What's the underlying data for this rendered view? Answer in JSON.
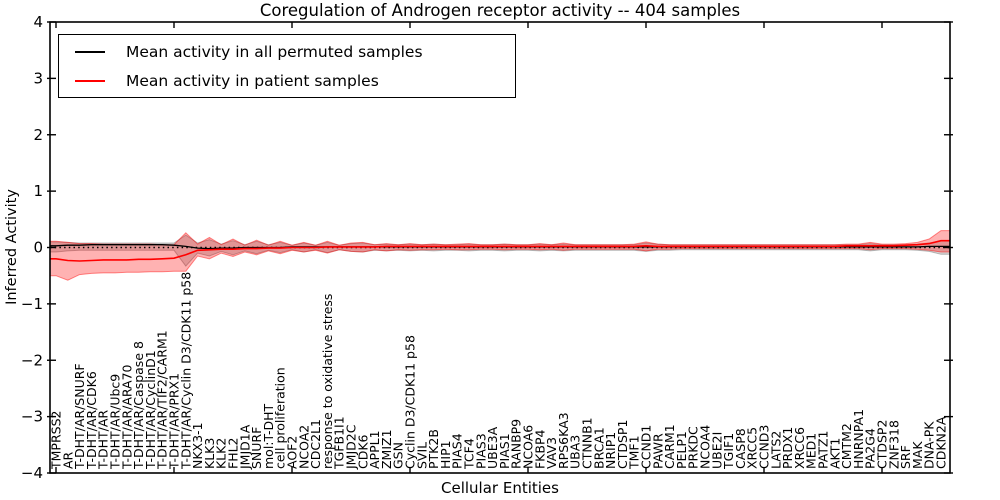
{
  "chart_data": {
    "type": "line",
    "title": "Coregulation of Androgen receptor activity -- 404 samples",
    "xlabel": "Cellular Entities",
    "ylabel": "Inferred Activity",
    "ylim": [
      -4,
      4
    ],
    "ytick_values": [
      4,
      3,
      2,
      1,
      0,
      -1,
      -2,
      -3,
      -4
    ],
    "ytick_labels": [
      "4",
      "3",
      "2",
      "1",
      "0",
      "−1",
      "−2",
      "−3",
      "−4"
    ],
    "grid": false,
    "legend_position": "upper left",
    "zero_line": "dotted black at y=0",
    "x_tick_every": 10,
    "categories": [
      "TMPRSS2",
      "AR",
      "T-DHT/AR/SNURF",
      "T-DHT/AR/CDK6",
      "T-DHT/AR",
      "T-DHT/AR/Ubc9",
      "T-DHT/AR/ARA70",
      "T-DHT/AR/Caspase 8",
      "T-DHT/AR/CyclinD1",
      "T-DHT/AR/TIF2/CARM1",
      "T-DHT/AR/PRX1",
      "T-DHT/AR/Cyclin D3/CDK11 p58",
      "NKX3-1",
      "KLK3",
      "KLK2",
      "FHL2",
      "JMJD1A",
      "SNURF",
      "mol:T-DHT",
      "cell proliferation",
      "AOF2",
      "NCOA2",
      "CDC2L1",
      "response to oxidative stress",
      "TGFB1I1",
      "JMJD2C",
      "CDK6",
      "APPL1",
      "ZMIZ1",
      "GSN",
      "Cyclin D3/CDK11 p58",
      "SVIL",
      "PTK2B",
      "HIP1",
      "PIAS4",
      "TCF4",
      "PIAS3",
      "UBE3A",
      "PIAS1",
      "RANBP9",
      "NCOA6",
      "FKBP4",
      "VAV3",
      "RPS6KA3",
      "UBA3",
      "CTNNB1",
      "BRCA1",
      "NRIP1",
      "CTDSP1",
      "TMF1",
      "CCND1",
      "PAWR",
      "CARM1",
      "PELP1",
      "PRKDC",
      "NCOA4",
      "UBE2I",
      "TGIF1",
      "CASP8",
      "XRCC5",
      "CCND3",
      "LATS2",
      "PRDX1",
      "XRCC6",
      "MED1",
      "PATZ1",
      "AKT1",
      "CMTM2",
      "HNRNPA1",
      "PA2G4",
      "CTDSP2",
      "ZNF318",
      "SRF",
      "MAK",
      "DNA-PK",
      "CDKN2A"
    ],
    "series": [
      {
        "name": "Mean activity in all permuted samples",
        "color": "#000000",
        "band_color": "rgba(0,0,0,0.16)",
        "band_edge_color": "rgba(0,0,0,0.25)",
        "values": [
          0.03,
          0.04,
          0.04,
          0.05,
          0.05,
          0.05,
          0.05,
          0.05,
          0.05,
          0.05,
          0.04,
          0.02,
          -0.01,
          -0.02,
          -0.01,
          -0.01,
          0,
          0,
          0,
          0,
          0.01,
          0.01,
          0.01,
          0.01,
          0.01,
          0.01,
          0.01,
          0.01,
          0.01,
          0.01,
          0.01,
          0.01,
          0.01,
          0.01,
          0.01,
          0.01,
          0.01,
          0.01,
          0.01,
          0.01,
          0.01,
          0.01,
          0.01,
          0.01,
          0.01,
          0.01,
          0.01,
          0.01,
          0.01,
          0.01,
          0.01,
          0.01,
          0.01,
          0.01,
          0.01,
          0.01,
          0.01,
          0.01,
          0.01,
          0.01,
          0.01,
          0.01,
          0.01,
          0.01,
          0.01,
          0.01,
          0.01,
          0.01,
          0.01,
          0.01,
          0.01,
          0.01,
          0.01,
          0.01,
          0.02,
          0.02
        ],
        "band_upper": [
          0.1,
          0.09,
          0.08,
          0.08,
          0.08,
          0.08,
          0.08,
          0.08,
          0.08,
          0.08,
          0.08,
          0.22,
          0.08,
          0.14,
          0.06,
          0.12,
          0.05,
          0.11,
          0.05,
          0.09,
          0.04,
          0.08,
          0.04,
          0.09,
          0.04,
          0.07,
          0.08,
          0.05,
          0.06,
          0.05,
          0.06,
          0.05,
          0.06,
          0.05,
          0.05,
          0.06,
          0.05,
          0.05,
          0.06,
          0.05,
          0.05,
          0.06,
          0.05,
          0.06,
          0.05,
          0.05,
          0.05,
          0.05,
          0.05,
          0.05,
          0.08,
          0.06,
          0.05,
          0.05,
          0.05,
          0.05,
          0.05,
          0.05,
          0.05,
          0.05,
          0.05,
          0.05,
          0.05,
          0.05,
          0.05,
          0.05,
          0.05,
          0.05,
          0.05,
          0.07,
          0.05,
          0.05,
          0.05,
          0.06,
          0.08,
          0.12
        ],
        "band_lower": [
          -0.08,
          -0.06,
          -0.05,
          -0.05,
          -0.05,
          -0.05,
          -0.05,
          -0.05,
          -0.05,
          -0.05,
          -0.05,
          -0.33,
          -0.1,
          -0.15,
          -0.07,
          -0.13,
          -0.06,
          -0.11,
          -0.05,
          -0.09,
          -0.04,
          -0.08,
          -0.04,
          -0.09,
          -0.04,
          -0.07,
          -0.08,
          -0.05,
          -0.06,
          -0.05,
          -0.06,
          -0.05,
          -0.06,
          -0.05,
          -0.05,
          -0.06,
          -0.05,
          -0.05,
          -0.06,
          -0.05,
          -0.05,
          -0.06,
          -0.05,
          -0.06,
          -0.05,
          -0.05,
          -0.05,
          -0.05,
          -0.05,
          -0.05,
          -0.07,
          -0.05,
          -0.05,
          -0.04,
          -0.04,
          -0.04,
          -0.04,
          -0.04,
          -0.04,
          -0.04,
          -0.04,
          -0.04,
          -0.04,
          -0.04,
          -0.04,
          -0.04,
          -0.04,
          -0.04,
          -0.04,
          -0.06,
          -0.04,
          -0.04,
          -0.04,
          -0.05,
          -0.07,
          -0.12
        ]
      },
      {
        "name": "Mean activity in patient samples",
        "color": "#ff0000",
        "band_color": "rgba(255,0,0,0.30)",
        "band_edge_color": "rgba(255,0,0,0.45)",
        "values": [
          -0.2,
          -0.23,
          -0.24,
          -0.23,
          -0.22,
          -0.22,
          -0.22,
          -0.21,
          -0.21,
          -0.2,
          -0.19,
          -0.13,
          -0.05,
          -0.04,
          -0.03,
          -0.03,
          -0.02,
          -0.02,
          -0.01,
          -0.01,
          0,
          0,
          0,
          0.01,
          0.01,
          0.01,
          0.01,
          0.01,
          0.02,
          0.02,
          0.02,
          0.02,
          0.02,
          0.02,
          0.02,
          0.02,
          0.02,
          0.02,
          0.02,
          0.02,
          0.02,
          0.02,
          0.02,
          0.02,
          0.02,
          0.02,
          0.02,
          0.02,
          0.02,
          0.02,
          0.03,
          0.02,
          0.02,
          0.02,
          0.02,
          0.02,
          0.02,
          0.02,
          0.02,
          0.02,
          0.02,
          0.02,
          0.02,
          0.02,
          0.02,
          0.02,
          0.02,
          0.03,
          0.03,
          0.03,
          0.03,
          0.03,
          0.04,
          0.05,
          0.07,
          0.12
        ],
        "band_upper": [
          0.11,
          0.09,
          0.07,
          0.07,
          0.06,
          0.06,
          0.06,
          0.06,
          0.06,
          0.05,
          0.05,
          0.26,
          0.06,
          0.18,
          0.05,
          0.15,
          0.04,
          0.13,
          0.04,
          0.11,
          0.04,
          0.09,
          0.04,
          0.11,
          0.04,
          0.08,
          0.09,
          0.05,
          0.07,
          0.05,
          0.07,
          0.05,
          0.06,
          0.05,
          0.06,
          0.07,
          0.05,
          0.05,
          0.06,
          0.05,
          0.05,
          0.07,
          0.05,
          0.08,
          0.05,
          0.05,
          0.05,
          0.05,
          0.05,
          0.06,
          0.1,
          0.06,
          0.05,
          0.05,
          0.05,
          0.05,
          0.05,
          0.05,
          0.05,
          0.05,
          0.05,
          0.05,
          0.05,
          0.05,
          0.05,
          0.05,
          0.05,
          0.06,
          0.06,
          0.09,
          0.06,
          0.06,
          0.07,
          0.09,
          0.15,
          0.3
        ],
        "band_lower": [
          -0.5,
          -0.58,
          -0.48,
          -0.46,
          -0.45,
          -0.45,
          -0.44,
          -0.44,
          -0.43,
          -0.43,
          -0.42,
          -0.42,
          -0.15,
          -0.2,
          -0.1,
          -0.16,
          -0.08,
          -0.13,
          -0.06,
          -0.11,
          -0.05,
          -0.08,
          -0.05,
          -0.1,
          -0.04,
          -0.07,
          -0.08,
          -0.04,
          -0.06,
          -0.04,
          -0.05,
          -0.04,
          -0.04,
          -0.03,
          -0.04,
          -0.04,
          -0.03,
          -0.03,
          -0.04,
          -0.03,
          -0.03,
          -0.04,
          -0.03,
          -0.05,
          -0.03,
          -0.03,
          -0.03,
          -0.03,
          -0.03,
          -0.03,
          -0.06,
          -0.03,
          -0.03,
          -0.02,
          -0.02,
          -0.02,
          -0.02,
          -0.02,
          -0.02,
          -0.02,
          -0.02,
          -0.02,
          -0.02,
          -0.02,
          -0.02,
          -0.02,
          -0.02,
          -0.02,
          -0.02,
          -0.04,
          -0.02,
          -0.02,
          -0.02,
          -0.03,
          -0.05,
          -0.08
        ]
      }
    ]
  }
}
